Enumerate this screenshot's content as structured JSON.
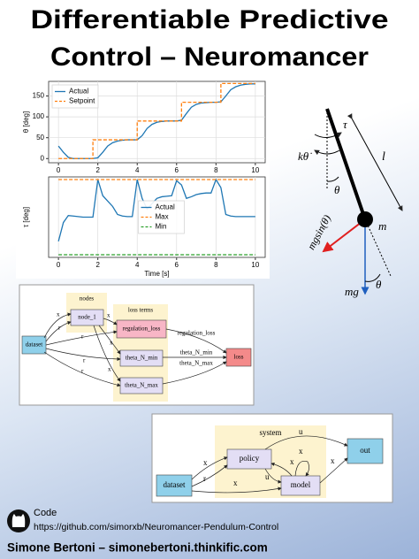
{
  "title": [
    "Differentiable Predictive",
    "Control – Neuromancer"
  ],
  "chart_data": [
    {
      "type": "line",
      "ylabel": "θ [deg]",
      "x": [
        0,
        0.25,
        0.5,
        0.75,
        1,
        1.25,
        1.5,
        1.75,
        2,
        2.25,
        2.5,
        2.75,
        3,
        3.25,
        3.5,
        3.75,
        4,
        4.25,
        4.5,
        4.75,
        5,
        5.25,
        5.5,
        5.75,
        6,
        6.25,
        6.5,
        6.75,
        7,
        7.25,
        7.5,
        7.75,
        8,
        8.25,
        8.5,
        8.75,
        9,
        9.25,
        9.5,
        9.75,
        10
      ],
      "series": [
        {
          "name": "Actual",
          "color": "#1f77b4",
          "style": "solid",
          "drawstyle": "default",
          "values": [
            30,
            15,
            3,
            0,
            0,
            0,
            0,
            0,
            2,
            15,
            30,
            38,
            42,
            44,
            45,
            45,
            45,
            55,
            72,
            82,
            87,
            89,
            90,
            90,
            90,
            92,
            108,
            123,
            130,
            133,
            134,
            135,
            135,
            136,
            150,
            165,
            172,
            176,
            178,
            179,
            179
          ]
        },
        {
          "name": "Setpoint",
          "color": "#ff7f0e",
          "style": "dashed",
          "drawstyle": "steps-post",
          "values": [
            0,
            0,
            0,
            0,
            0,
            0,
            0,
            45,
            45,
            45,
            45,
            45,
            45,
            45,
            45,
            45,
            90,
            90,
            90,
            90,
            90,
            90,
            90,
            90,
            90,
            135,
            135,
            135,
            135,
            135,
            135,
            135,
            135,
            180,
            180,
            180,
            180,
            180,
            180,
            180,
            180
          ]
        }
      ],
      "xlim": [
        -0.5,
        10.5
      ],
      "ylim": [
        -10,
        185
      ],
      "xticks": [
        0,
        2,
        4,
        6,
        8,
        10
      ],
      "yticks": [
        0,
        50,
        100,
        150
      ],
      "grid": true,
      "legend": "upper left"
    },
    {
      "type": "line",
      "ylabel": "τ [deg]",
      "xlabel": "Time [s]",
      "x": [
        0,
        0.25,
        0.5,
        0.75,
        1,
        1.25,
        1.5,
        1.75,
        2,
        2.25,
        2.5,
        2.75,
        3,
        3.25,
        3.5,
        3.75,
        4,
        4.25,
        4.5,
        4.75,
        5,
        5.25,
        5.5,
        5.75,
        6,
        6.25,
        6.5,
        6.75,
        7,
        7.25,
        7.5,
        7.75,
        8,
        8.25,
        8.5,
        8.75,
        9,
        9.25,
        9.5,
        9.75,
        10
      ],
      "series": [
        {
          "name": "Actual",
          "color": "#1f77b4",
          "style": "solid",
          "drawstyle": "default",
          "values": [
            -4.5,
            -1,
            0.3,
            0.2,
            0.1,
            0,
            0,
            0,
            7,
            4,
            3,
            2,
            0.5,
            0.2,
            0.1,
            0.1,
            7,
            3.5,
            1.5,
            2.5,
            3.5,
            3.8,
            3.9,
            4,
            6.8,
            6,
            3.5,
            3.8,
            4.2,
            4.4,
            4.5,
            4.5,
            7,
            5.5,
            0.5,
            0.2,
            0.1,
            0.1,
            0.1,
            0.1,
            0.1
          ]
        },
        {
          "name": "Max",
          "color": "#ff7f0e",
          "style": "dashed",
          "drawstyle": "default",
          "values": [
            7,
            7,
            7,
            7,
            7,
            7,
            7,
            7,
            7,
            7,
            7,
            7,
            7,
            7,
            7,
            7,
            7,
            7,
            7,
            7,
            7,
            7,
            7,
            7,
            7,
            7,
            7,
            7,
            7,
            7,
            7,
            7,
            7,
            7,
            7,
            7,
            7,
            7,
            7,
            7,
            7
          ]
        },
        {
          "name": "Min",
          "color": "#2ca02c",
          "style": "dashed",
          "drawstyle": "default",
          "values": [
            -7,
            -7,
            -7,
            -7,
            -7,
            -7,
            -7,
            -7,
            -7,
            -7,
            -7,
            -7,
            -7,
            -7,
            -7,
            -7,
            -7,
            -7,
            -7,
            -7,
            -7,
            -7,
            -7,
            -7,
            -7,
            -7,
            -7,
            -7,
            -7,
            -7,
            -7,
            -7,
            -7,
            -7,
            -7,
            -7,
            -7,
            -7,
            -7,
            -7,
            -7
          ]
        }
      ],
      "xlim": [
        -0.5,
        10.5
      ],
      "ylim": [
        -7.5,
        7.5
      ],
      "xticks": [
        0,
        2,
        4,
        6,
        8,
        10
      ],
      "grid": true,
      "legend": "center"
    }
  ],
  "pendulum": {
    "labels": [
      "τ",
      "kθ̇",
      "θ",
      "l",
      "m",
      "mgsin(θ)",
      "mg",
      "θ"
    ]
  },
  "diagram1": {
    "groups": [
      "nodes",
      "loss terms"
    ],
    "nodes": [
      "dataset",
      "node_1",
      "regulation_loss",
      "theta_N_min",
      "theta_N_max",
      "loss"
    ],
    "edges": [
      "x",
      "r",
      "r",
      "r",
      "r",
      "x",
      "x",
      "x",
      "regulation_loss",
      "theta_N_min",
      "theta_N_max"
    ]
  },
  "diagram2": {
    "groups": [
      "system"
    ],
    "nodes": [
      "policy",
      "model",
      "out",
      "dataset"
    ],
    "edges": [
      "u",
      "x",
      "x",
      "r",
      "x",
      "u",
      "x",
      "x"
    ]
  },
  "footer": {
    "code": "Code",
    "link": "https://github.com/simorxb/Neuromancer-Pendulum-Control",
    "author": "Simone Bertoni – simonebertoni.thinkific.com"
  }
}
